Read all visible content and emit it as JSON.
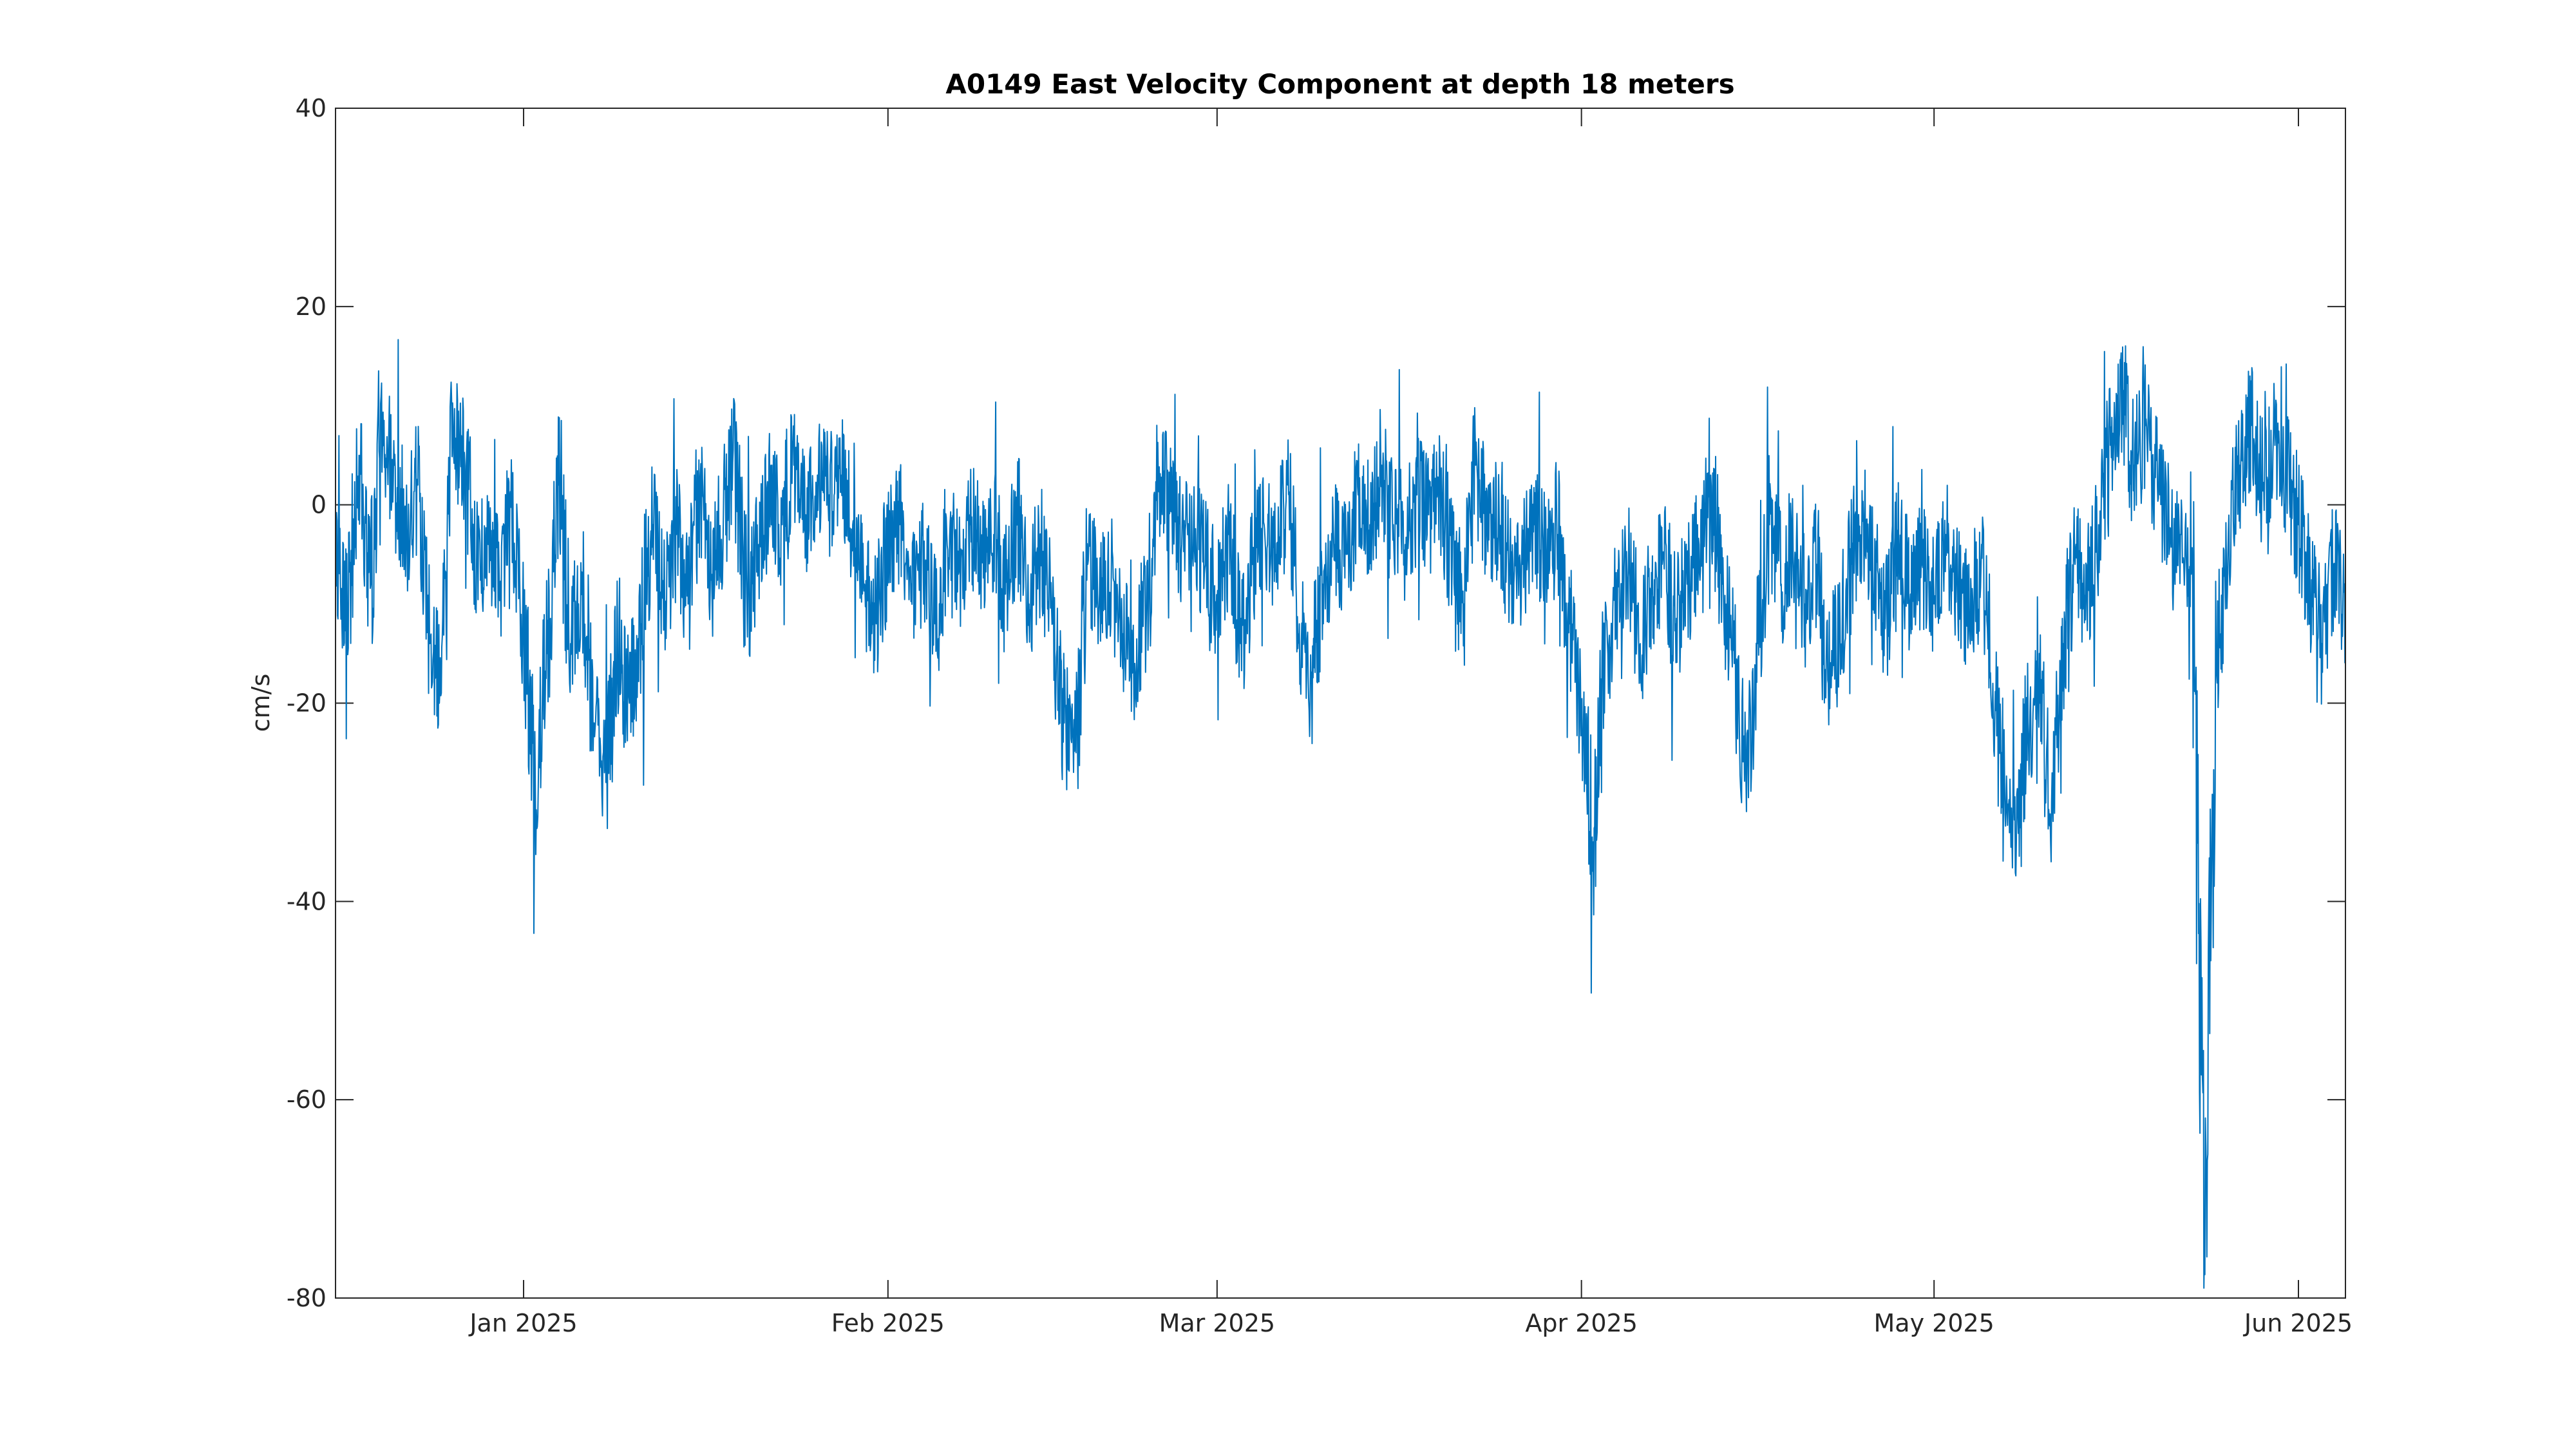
{
  "chart_data": {
    "type": "line",
    "title": "A0149 East Velocity Component at depth 18 meters",
    "xlabel": "",
    "ylabel": "cm/s",
    "xlim": [
      "2024-12-16",
      "2025-06-05"
    ],
    "ylim": [
      -80,
      40
    ],
    "x_ticks": [
      {
        "date": "2025-01-01",
        "label": "Jan 2025"
      },
      {
        "date": "2025-02-01",
        "label": "Feb 2025"
      },
      {
        "date": "2025-03-01",
        "label": "Mar 2025"
      },
      {
        "date": "2025-04-01",
        "label": "Apr 2025"
      },
      {
        "date": "2025-05-01",
        "label": "May 2025"
      },
      {
        "date": "2025-06-01",
        "label": "Jun 2025"
      }
    ],
    "y_ticks": [
      40,
      20,
      0,
      -20,
      -40,
      -60,
      -80
    ],
    "grid": false,
    "series": [
      {
        "color": "#0072BD",
        "points": [
          [
            "2024-12-16",
            -5
          ],
          [
            "2024-12-17",
            -12
          ],
          [
            "2024-12-18",
            5
          ],
          [
            "2024-12-19",
            -8
          ],
          [
            "2024-12-20",
            6
          ],
          [
            "2024-12-21",
            4
          ],
          [
            "2024-12-22",
            -3
          ],
          [
            "2024-12-23",
            2
          ],
          [
            "2024-12-24",
            -14
          ],
          [
            "2024-12-25",
            -19
          ],
          [
            "2024-12-26",
            8
          ],
          [
            "2024-12-27",
            4
          ],
          [
            "2024-12-28",
            -6
          ],
          [
            "2024-12-29",
            -4
          ],
          [
            "2024-12-30",
            -8
          ],
          [
            "2024-12-31",
            0
          ],
          [
            "2025-01-01",
            -12
          ],
          [
            "2025-01-02",
            -29
          ],
          [
            "2025-01-03",
            -15
          ],
          [
            "2025-01-04",
            2
          ],
          [
            "2025-01-05",
            -14
          ],
          [
            "2025-01-06",
            -8
          ],
          [
            "2025-01-07",
            -22
          ],
          [
            "2025-01-08",
            -28
          ],
          [
            "2025-01-09",
            -15
          ],
          [
            "2025-01-10",
            -20
          ],
          [
            "2025-01-11",
            -12
          ],
          [
            "2025-01-12",
            -2
          ],
          [
            "2025-01-13",
            -9
          ],
          [
            "2025-01-14",
            -3
          ],
          [
            "2025-01-15",
            -10
          ],
          [
            "2025-01-16",
            2
          ],
          [
            "2025-01-17",
            -7
          ],
          [
            "2025-01-18",
            -1
          ],
          [
            "2025-01-19",
            5
          ],
          [
            "2025-01-20",
            -10
          ],
          [
            "2025-01-21",
            -4
          ],
          [
            "2025-01-22",
            2
          ],
          [
            "2025-01-23",
            -2
          ],
          [
            "2025-01-24",
            4
          ],
          [
            "2025-01-25",
            -1
          ],
          [
            "2025-01-26",
            3
          ],
          [
            "2025-01-27",
            1
          ],
          [
            "2025-01-28",
            3
          ],
          [
            "2025-01-29",
            -2
          ],
          [
            "2025-01-30",
            -8
          ],
          [
            "2025-01-31",
            -12
          ],
          [
            "2025-02-01",
            -4
          ],
          [
            "2025-02-02",
            -2
          ],
          [
            "2025-02-03",
            -8
          ],
          [
            "2025-02-04",
            -6
          ],
          [
            "2025-02-05",
            -12
          ],
          [
            "2025-02-06",
            -3
          ],
          [
            "2025-02-07",
            -7
          ],
          [
            "2025-02-08",
            -2
          ],
          [
            "2025-02-09",
            -5
          ],
          [
            "2025-02-10",
            -3
          ],
          [
            "2025-02-11",
            -9
          ],
          [
            "2025-02-12",
            -1
          ],
          [
            "2025-02-13",
            -10
          ],
          [
            "2025-02-14",
            -4
          ],
          [
            "2025-02-15",
            -12
          ],
          [
            "2025-02-16",
            -22
          ],
          [
            "2025-02-17",
            -25
          ],
          [
            "2025-02-18",
            -6
          ],
          [
            "2025-02-19",
            -9
          ],
          [
            "2025-02-20",
            -7
          ],
          [
            "2025-02-21",
            -13
          ],
          [
            "2025-02-22",
            -16
          ],
          [
            "2025-02-23",
            -10
          ],
          [
            "2025-02-24",
            3
          ],
          [
            "2025-02-25",
            0
          ],
          [
            "2025-02-26",
            -4
          ],
          [
            "2025-02-27",
            -2
          ],
          [
            "2025-02-28",
            -6
          ],
          [
            "2025-03-01",
            -10
          ],
          [
            "2025-03-02",
            -3
          ],
          [
            "2025-03-03",
            -14
          ],
          [
            "2025-03-04",
            -6
          ],
          [
            "2025-03-05",
            -2
          ],
          [
            "2025-03-06",
            -5
          ],
          [
            "2025-03-07",
            2
          ],
          [
            "2025-03-08",
            -12
          ],
          [
            "2025-03-09",
            -18
          ],
          [
            "2025-03-10",
            -8
          ],
          [
            "2025-03-11",
            -4
          ],
          [
            "2025-03-12",
            -5
          ],
          [
            "2025-03-13",
            1
          ],
          [
            "2025-03-14",
            -2
          ],
          [
            "2025-03-15",
            4
          ],
          [
            "2025-03-16",
            -2
          ],
          [
            "2025-03-17",
            -4
          ],
          [
            "2025-03-18",
            1
          ],
          [
            "2025-03-19",
            -1
          ],
          [
            "2025-03-20",
            2
          ],
          [
            "2025-03-21",
            -6
          ],
          [
            "2025-03-22",
            -10
          ],
          [
            "2025-03-23",
            4
          ],
          [
            "2025-03-24",
            -3
          ],
          [
            "2025-03-25",
            -1
          ],
          [
            "2025-03-26",
            -8
          ],
          [
            "2025-03-27",
            -6
          ],
          [
            "2025-03-28",
            -2
          ],
          [
            "2025-03-29",
            -5
          ],
          [
            "2025-03-30",
            -3
          ],
          [
            "2025-03-31",
            -12
          ],
          [
            "2025-04-01",
            -20
          ],
          [
            "2025-04-02",
            -34
          ],
          [
            "2025-04-03",
            -15
          ],
          [
            "2025-04-04",
            -10
          ],
          [
            "2025-04-05",
            -6
          ],
          [
            "2025-04-06",
            -14
          ],
          [
            "2025-04-07",
            -9
          ],
          [
            "2025-04-08",
            -5
          ],
          [
            "2025-04-09",
            -12
          ],
          [
            "2025-04-10",
            -8
          ],
          [
            "2025-04-11",
            -4
          ],
          [
            "2025-04-12",
            3
          ],
          [
            "2025-04-13",
            -8
          ],
          [
            "2025-04-14",
            -16
          ],
          [
            "2025-04-15",
            -28
          ],
          [
            "2025-04-16",
            -14
          ],
          [
            "2025-04-17",
            -2
          ],
          [
            "2025-04-18",
            -8
          ],
          [
            "2025-04-19",
            -4
          ],
          [
            "2025-04-20",
            -10
          ],
          [
            "2025-04-21",
            -6
          ],
          [
            "2025-04-22",
            -18
          ],
          [
            "2025-04-23",
            -12
          ],
          [
            "2025-04-24",
            -6
          ],
          [
            "2025-04-25",
            -2
          ],
          [
            "2025-04-26",
            -7
          ],
          [
            "2025-04-27",
            -12
          ],
          [
            "2025-04-28",
            -4
          ],
          [
            "2025-04-29",
            -9
          ],
          [
            "2025-04-30",
            -6
          ],
          [
            "2025-05-01",
            -10
          ],
          [
            "2025-05-02",
            -3
          ],
          [
            "2025-05-03",
            -8
          ],
          [
            "2025-05-04",
            -12
          ],
          [
            "2025-05-05",
            -6
          ],
          [
            "2025-05-06",
            -18
          ],
          [
            "2025-05-07",
            -28
          ],
          [
            "2025-05-08",
            -34
          ],
          [
            "2025-05-09",
            -22
          ],
          [
            "2025-05-10",
            -20
          ],
          [
            "2025-05-11",
            -30
          ],
          [
            "2025-05-12",
            -14
          ],
          [
            "2025-05-13",
            -6
          ],
          [
            "2025-05-14",
            -10
          ],
          [
            "2025-05-15",
            -2
          ],
          [
            "2025-05-16",
            6
          ],
          [
            "2025-05-17",
            10
          ],
          [
            "2025-05-18",
            4
          ],
          [
            "2025-05-19",
            8
          ],
          [
            "2025-05-20",
            2
          ],
          [
            "2025-05-21",
            -5
          ],
          [
            "2025-05-22",
            -3
          ],
          [
            "2025-05-23",
            -8
          ],
          [
            "2025-05-24",
            -75
          ],
          [
            "2025-05-25",
            -15
          ],
          [
            "2025-05-26",
            -5
          ],
          [
            "2025-05-27",
            4
          ],
          [
            "2025-05-28",
            8
          ],
          [
            "2025-05-29",
            2
          ],
          [
            "2025-05-30",
            6
          ],
          [
            "2025-05-31",
            3
          ],
          [
            "2025-06-01",
            -2
          ],
          [
            "2025-06-02",
            -8
          ],
          [
            "2025-06-03",
            -14
          ],
          [
            "2025-06-04",
            -6
          ],
          [
            "2025-06-05",
            -10
          ]
        ]
      }
    ]
  }
}
